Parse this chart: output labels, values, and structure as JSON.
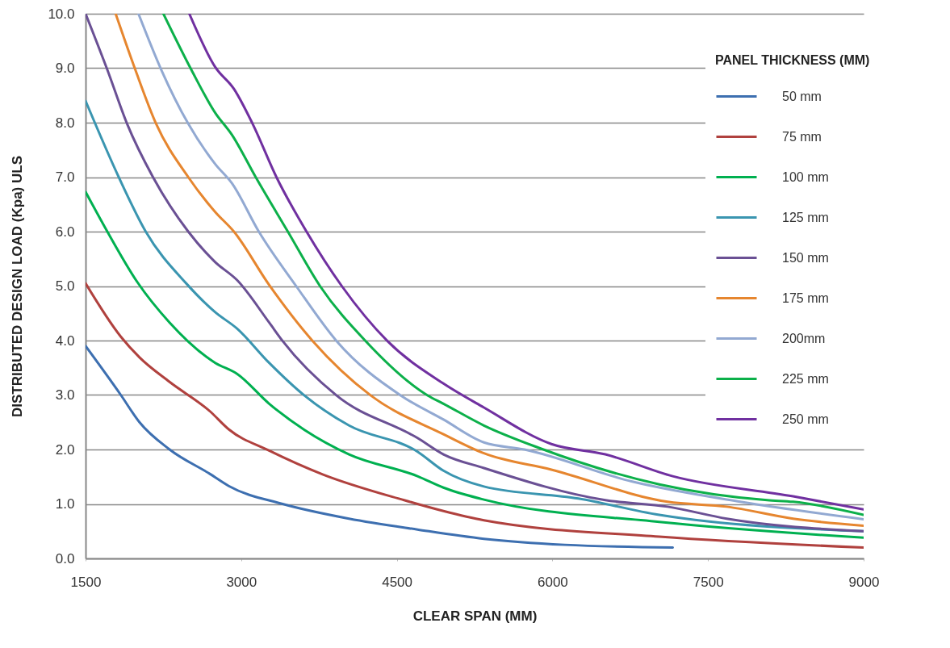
{
  "chart_data": {
    "type": "line",
    "xlabel": "CLEAR SPAN (MM)",
    "ylabel": "DISTRIBUTED DESIGN LOAD (Kpa) ULS",
    "legend_title": "PANEL THICKNESS (MM)",
    "legend": "top right",
    "grid": "y",
    "line_style": "solid",
    "xlim": [
      1500,
      9000
    ],
    "xticks": [
      1500,
      3000,
      4500,
      6000,
      7500,
      9000
    ],
    "ylim": [
      0,
      10
    ],
    "yticks": [
      {
        "value": 0,
        "label": "0.0"
      },
      {
        "value": 1,
        "label": "1.0"
      },
      {
        "value": 2,
        "label": "2.0"
      },
      {
        "value": 3,
        "label": "3.0"
      },
      {
        "value": 4,
        "label": "4.0"
      },
      {
        "value": 5,
        "label": "5.0"
      },
      {
        "value": 6,
        "label": "6.0"
      },
      {
        "value": 7,
        "label": "7.0"
      },
      {
        "value": 8,
        "label": "8.0"
      },
      {
        "value": 9,
        "label": "9.0"
      },
      {
        "value": 10,
        "label": "10.0"
      }
    ],
    "series": [
      {
        "name": "50 mm",
        "color": "#3d6fb0",
        "x": [
          1500,
          1840,
          2020,
          2310,
          2700,
          2880,
          3400,
          4040,
          4700,
          5340,
          6120,
          7160
        ],
        "values": [
          3.9,
          3.0,
          2.5,
          2.0,
          1.55,
          1.33,
          1.0,
          0.73,
          0.53,
          0.36,
          0.25,
          0.2
        ]
      },
      {
        "name": "75 mm",
        "color": "#b0413e",
        "x": [
          1500,
          1840,
          2020,
          2310,
          2700,
          2880,
          3270,
          3790,
          4570,
          4950,
          5340,
          7030,
          9000
        ],
        "values": [
          5.05,
          4.07,
          3.69,
          3.24,
          2.7,
          2.37,
          1.98,
          1.54,
          1.07,
          0.87,
          0.7,
          0.4,
          0.2
        ]
      },
      {
        "name": "100 mm",
        "color": "#00b050",
        "x": [
          1500,
          1710,
          2000,
          2310,
          2750,
          2960,
          3270,
          3610,
          4040,
          4700,
          4950,
          5340,
          7030,
          9000
        ],
        "values": [
          6.73,
          6.0,
          5.07,
          4.33,
          3.59,
          3.39,
          2.84,
          2.36,
          1.91,
          1.51,
          1.3,
          1.08,
          0.67,
          0.38
        ]
      },
      {
        "name": "125 mm",
        "color": "#3a95b0",
        "x": [
          1500,
          1820,
          2080,
          2470,
          2750,
          2960,
          3270,
          3610,
          4040,
          4700,
          4950,
          5340,
          6250,
          7030,
          9000
        ],
        "values": [
          8.4,
          7.0,
          6.0,
          5.05,
          4.52,
          4.22,
          3.59,
          2.99,
          2.44,
          1.96,
          1.61,
          1.32,
          1.1,
          0.8,
          0.5
        ]
      },
      {
        "name": "150 mm",
        "color": "#6a5094",
        "x": [
          1500,
          1710,
          1900,
          2150,
          2490,
          2750,
          2960,
          3270,
          3400,
          3920,
          4700,
          4950,
          5340,
          6510,
          7110,
          7680,
          9000
        ],
        "values": [
          10.0,
          8.97,
          7.98,
          7.0,
          6.0,
          5.44,
          5.11,
          4.33,
          3.99,
          2.99,
          2.21,
          1.91,
          1.66,
          1.07,
          0.95,
          0.73,
          0.5
        ]
      },
      {
        "name": "175 mm",
        "color": "#e6862f",
        "x": [
          1790,
          1980,
          2180,
          2490,
          2750,
          2930,
          3270,
          3690,
          4250,
          4950,
          5340,
          5990,
          7110,
          7680,
          8320,
          9000
        ],
        "values": [
          10.0,
          8.97,
          7.98,
          7.0,
          6.36,
          6.0,
          5.02,
          3.99,
          2.99,
          2.28,
          1.93,
          1.63,
          1.04,
          0.95,
          0.73,
          0.6
        ]
      },
      {
        "name": "200mm",
        "color": "#92a9d2",
        "x": [
          2010,
          2230,
          2490,
          2750,
          2910,
          3170,
          3530,
          3920,
          4540,
          4950,
          5340,
          5730,
          6770,
          7810,
          9000
        ],
        "values": [
          10.0,
          8.97,
          7.98,
          7.24,
          6.89,
          6.0,
          5.0,
          3.99,
          2.99,
          2.55,
          2.13,
          2.0,
          1.41,
          1.04,
          0.72
        ]
      },
      {
        "name": "225 mm",
        "color": "#0cb04a",
        "x": [
          2250,
          2520,
          2750,
          2910,
          3140,
          3450,
          3760,
          4200,
          4800,
          4950,
          5340,
          5870,
          7030,
          8070,
          8320,
          9000
        ],
        "values": [
          10.0,
          8.97,
          8.18,
          7.78,
          7.0,
          6.0,
          5.0,
          3.99,
          2.99,
          2.84,
          2.44,
          2.03,
          1.36,
          1.07,
          1.04,
          0.8
        ]
      },
      {
        "name": "250 mm",
        "color": "#7030a0",
        "x": [
          2500,
          2750,
          2930,
          3110,
          3340,
          3630,
          3970,
          4410,
          4950,
          5340,
          5990,
          6510,
          7160,
          8320,
          9000
        ],
        "values": [
          10.0,
          9.02,
          8.62,
          7.98,
          7.0,
          6.0,
          5.0,
          3.99,
          3.21,
          2.77,
          2.1,
          1.91,
          1.51,
          1.14,
          0.9
        ]
      }
    ]
  }
}
